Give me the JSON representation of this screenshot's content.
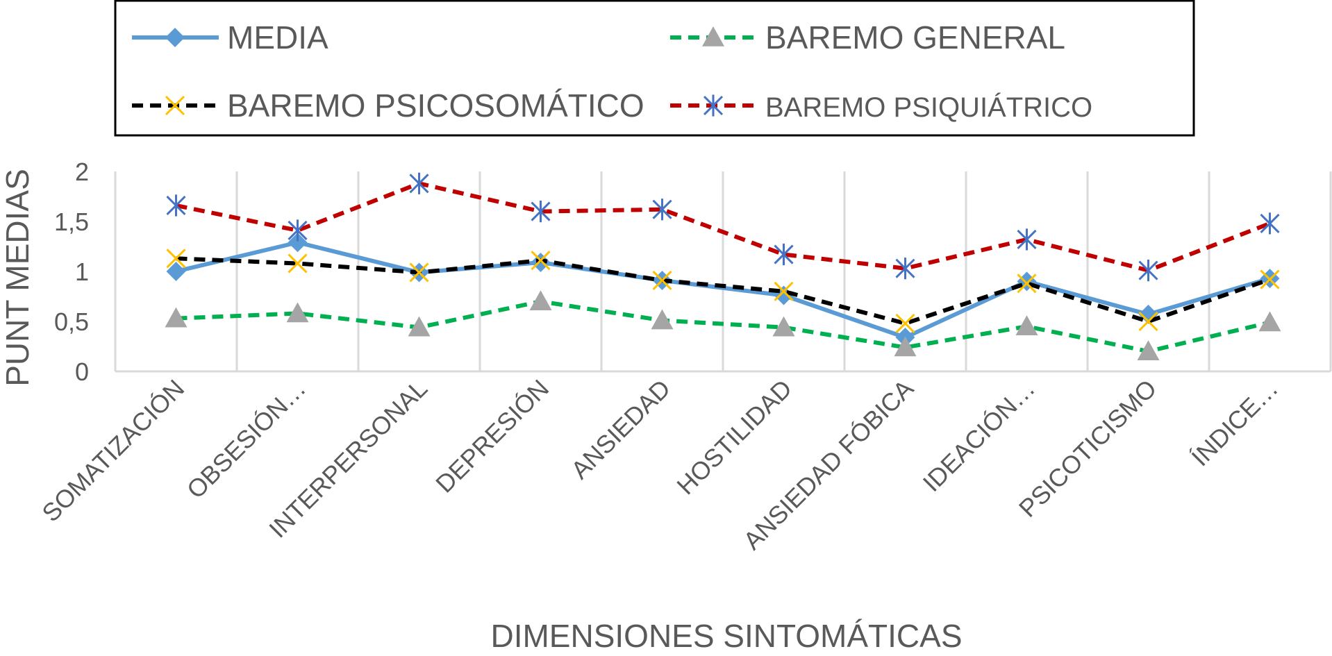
{
  "chart_data": {
    "type": "line",
    "title": "",
    "xlabel": "DIMENSIONES SINTOMÁTICAS",
    "ylabel": "PUNT MEDIAS",
    "ylim": [
      0,
      2
    ],
    "yticks": [
      "0",
      "0,5",
      "1",
      "1,5",
      "2"
    ],
    "grid": "vertical",
    "legend_position": "top",
    "categories": [
      "SOMATIZACIÓN",
      "OBSESIÓN…",
      "INTERPERSONAL",
      "DEPRESIÓN",
      "ANSIEDAD",
      "HOSTILIDAD",
      "ANSIEDAD FÓBICA",
      "IDEACIÓN…",
      "PSICOTICISMO",
      "ÍNDICE…"
    ],
    "series": [
      {
        "name": "MEDIA",
        "color": "#5b9bd5",
        "dash": "solid",
        "marker": "diamond",
        "values": [
          1.0,
          1.29,
          0.99,
          1.09,
          0.91,
          0.76,
          0.34,
          0.9,
          0.57,
          0.93
        ]
      },
      {
        "name": "BAREMO GENERAL",
        "color": "#00b050",
        "dash": "dashed",
        "marker": "triangle",
        "values": [
          0.53,
          0.58,
          0.44,
          0.7,
          0.51,
          0.44,
          0.24,
          0.45,
          0.2,
          0.49
        ]
      },
      {
        "name": "BAREMO PSICOSOMÁTICO",
        "color": "#000000",
        "dash": "dashed",
        "marker": "x",
        "values": [
          1.13,
          1.08,
          0.99,
          1.11,
          0.91,
          0.8,
          0.48,
          0.88,
          0.5,
          0.92
        ]
      },
      {
        "name": "BAREMO PSIQUIÁTRICO",
        "color": "#c00000",
        "dash": "dashed",
        "marker": "asterisk",
        "values": [
          1.66,
          1.41,
          1.88,
          1.6,
          1.62,
          1.17,
          1.03,
          1.32,
          1.01,
          1.48
        ]
      }
    ]
  },
  "colors": {
    "x_marker": "#ffc000",
    "asterisk_marker": "#4472c4",
    "triangle_marker": "#a5a5a5",
    "gridline": "#d9d9d9",
    "text": "#595959"
  }
}
